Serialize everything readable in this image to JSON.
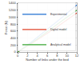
{
  "chart_data": {
    "type": "line",
    "x_label": "Number of links under the bed",
    "y_label": "Force (N)",
    "x": [
      0,
      1,
      2,
      3,
      4,
      5,
      6,
      7,
      8,
      9,
      10,
      11,
      12
    ],
    "series": [
      {
        "name": "Experimental",
        "color": "#1f6fd1",
        "values": [
          0,
          95,
          200,
          310,
          420,
          530,
          640,
          750,
          870,
          990,
          1110,
          1230,
          1350
        ]
      },
      {
        "name": "Digital model",
        "color": "#e0452a",
        "values": [
          0,
          80,
          170,
          260,
          350,
          440,
          530,
          620,
          720,
          820,
          920,
          1020,
          1120
        ]
      },
      {
        "name": "Analytical model",
        "color": "#3aa635",
        "values": [
          0,
          88,
          180,
          275,
          375,
          475,
          580,
          685,
          790,
          895,
          1000,
          1100,
          1200
        ]
      }
    ],
    "xlim": [
      0,
      12
    ],
    "xticks": [
      0,
      2,
      4,
      6,
      8,
      10,
      12
    ],
    "ylim": [
      0,
      1400
    ],
    "yticks": [
      0,
      200,
      400,
      600,
      800,
      1000,
      1200,
      1400
    ],
    "grid": true,
    "legend": "bottom right"
  }
}
